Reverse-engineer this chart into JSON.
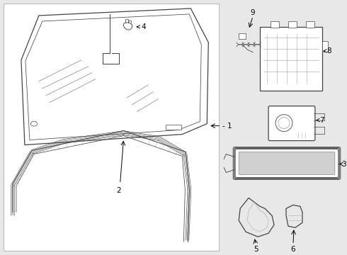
{
  "bg_color": "#e8e8e8",
  "box_color": "#ffffff",
  "line_color": "#444444",
  "fig_width": 4.9,
  "fig_height": 3.6,
  "dpi": 100
}
